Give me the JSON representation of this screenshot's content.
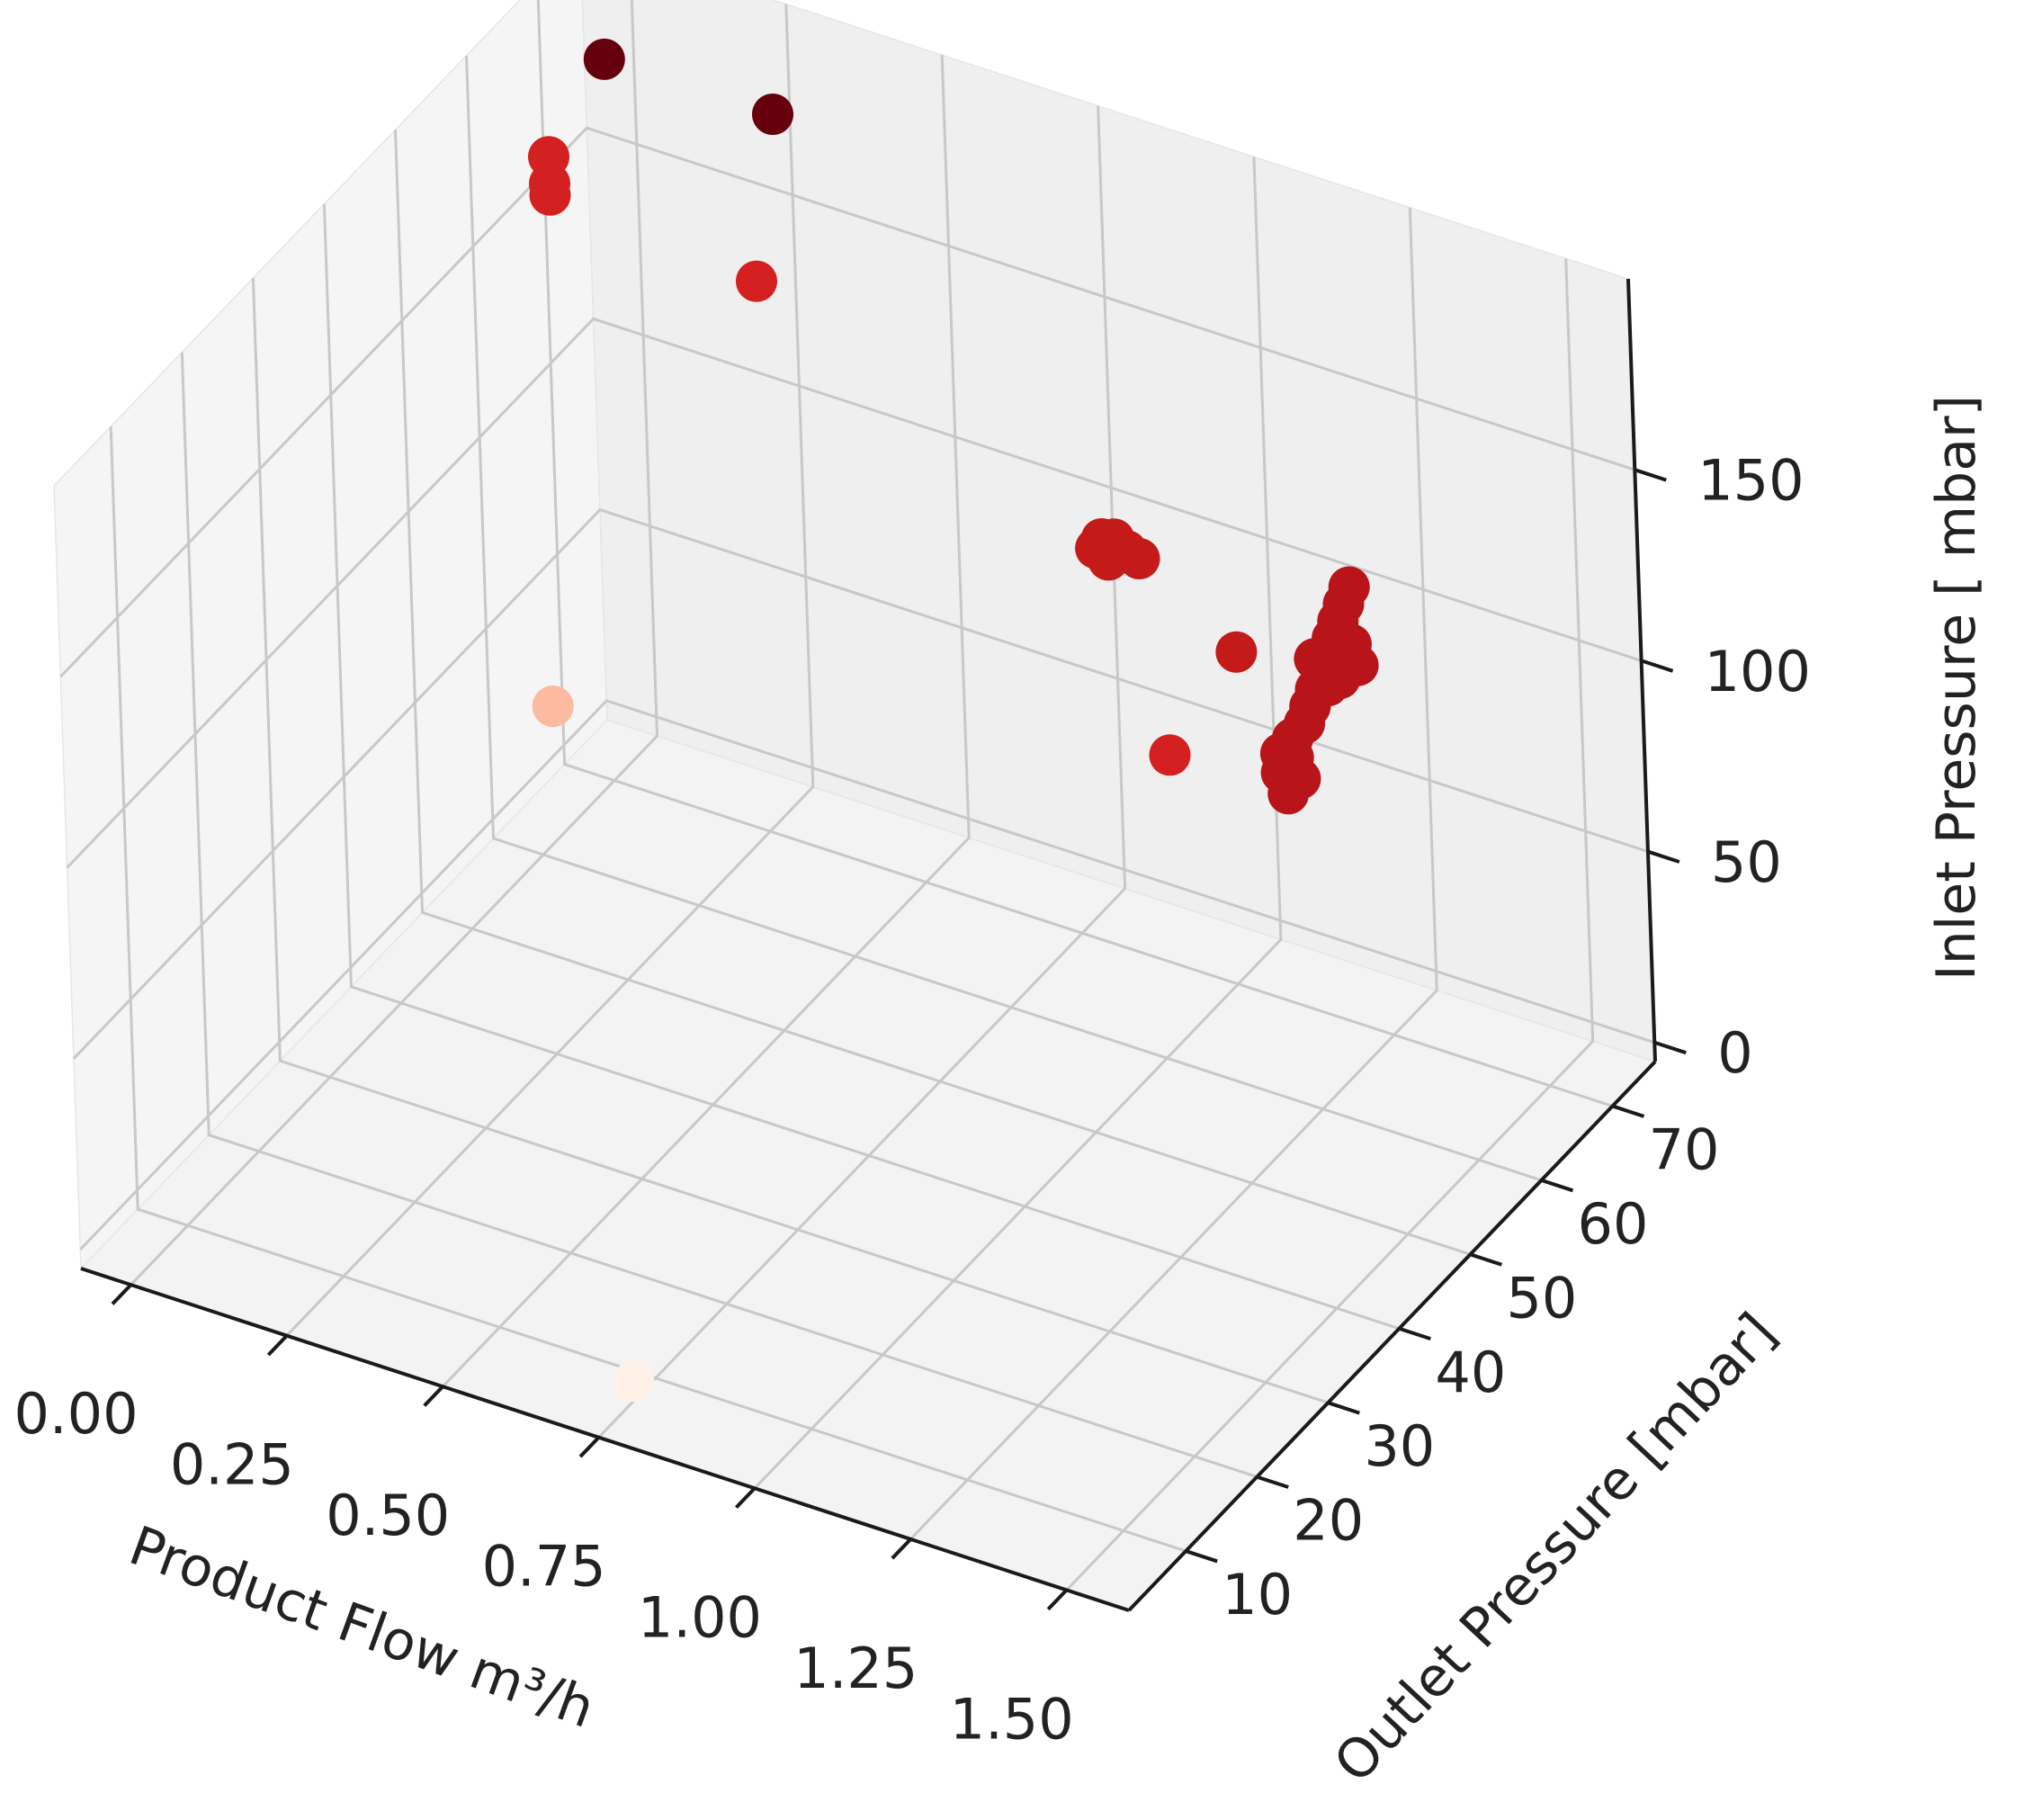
{
  "chart_data": {
    "type": "scatter",
    "dimensions": "3d",
    "xlabel": "Product Flow m³/h",
    "ylabel": "Outlet Pressure [mbar]",
    "zlabel": "Inlet Pressure [ mbar]",
    "x_ticks": [
      "0.00",
      "0.25",
      "0.50",
      "0.75",
      "1.00",
      "1.25",
      "1.50"
    ],
    "y_ticks": [
      "10",
      "20",
      "30",
      "40",
      "50",
      "60",
      "70"
    ],
    "z_ticks": [
      "0",
      "50",
      "100",
      "150"
    ],
    "xlim": [
      -0.08,
      1.6
    ],
    "ylim": [
      2,
      76
    ],
    "zlim": [
      -5,
      200
    ],
    "grid": true,
    "colormap": "Reds",
    "colors": {
      "light": "#fcbba1",
      "faint": "#fff0e8",
      "mid": "#d7301f",
      "strong": "#b81419",
      "dark": "#67000d"
    },
    "points": [
      {
        "x": 0.0,
        "y": 62,
        "z": 30,
        "color": "#fcbba1"
      },
      {
        "x": 0.75,
        "y": 7,
        "z": 0,
        "color": "#fff0e8"
      },
      {
        "x": 0.0,
        "y": 72,
        "z": 180,
        "color": "#67000d"
      },
      {
        "x": 0.27,
        "y": 72,
        "z": 180,
        "color": "#67000d"
      },
      {
        "x": 0.0,
        "y": 64,
        "z": 170,
        "color": "#d42020"
      },
      {
        "x": 0.0,
        "y": 64,
        "z": 163,
        "color": "#d42020"
      },
      {
        "x": 0.0,
        "y": 64,
        "z": 160,
        "color": "#d42020"
      },
      {
        "x": 0.33,
        "y": 64,
        "z": 155,
        "color": "#d42020"
      },
      {
        "x": 1.08,
        "y": 46,
        "z": 160,
        "color": "#c41a1a"
      },
      {
        "x": 1.09,
        "y": 46,
        "z": 163,
        "color": "#c41a1a"
      },
      {
        "x": 1.11,
        "y": 46,
        "z": 164,
        "color": "#c41a1a"
      },
      {
        "x": 1.1,
        "y": 46,
        "z": 158,
        "color": "#c41a1a"
      },
      {
        "x": 1.13,
        "y": 46,
        "z": 162,
        "color": "#c41a1a"
      },
      {
        "x": 1.15,
        "y": 46,
        "z": 161,
        "color": "#c41a1a"
      },
      {
        "x": 1.35,
        "y": 42,
        "z": 155,
        "color": "#c41a1a"
      },
      {
        "x": 1.32,
        "y": 35,
        "z": 140,
        "color": "#d42020"
      },
      {
        "x": 1.5,
        "y": 35,
        "z": 150,
        "color": "#b81419"
      },
      {
        "x": 1.51,
        "y": 35,
        "z": 140,
        "color": "#b81419"
      },
      {
        "x": 1.52,
        "y": 35,
        "z": 155,
        "color": "#b81419"
      },
      {
        "x": 1.53,
        "y": 35,
        "z": 145,
        "color": "#b81419"
      },
      {
        "x": 1.54,
        "y": 35,
        "z": 160,
        "color": "#b81419"
      },
      {
        "x": 1.55,
        "y": 35,
        "z": 165,
        "color": "#b81419"
      },
      {
        "x": 1.56,
        "y": 35,
        "z": 170,
        "color": "#b81419"
      },
      {
        "x": 1.57,
        "y": 35,
        "z": 175,
        "color": "#b81419"
      },
      {
        "x": 1.58,
        "y": 35,
        "z": 180,
        "color": "#b81419"
      },
      {
        "x": 1.59,
        "y": 35,
        "z": 185,
        "color": "#b81419"
      },
      {
        "x": 1.56,
        "y": 35,
        "z": 178,
        "color": "#b81419"
      },
      {
        "x": 1.58,
        "y": 35,
        "z": 172,
        "color": "#b81419"
      },
      {
        "x": 1.6,
        "y": 35,
        "z": 190,
        "color": "#b81419"
      },
      {
        "x": 1.61,
        "y": 35,
        "z": 195,
        "color": "#b81419"
      },
      {
        "x": 1.62,
        "y": 35,
        "z": 200,
        "color": "#b81419"
      },
      {
        "x": 1.62,
        "y": 35,
        "z": 185,
        "color": "#b81419"
      },
      {
        "x": 1.63,
        "y": 35,
        "z": 180,
        "color": "#b81419"
      },
      {
        "x": 1.6,
        "y": 35,
        "z": 175,
        "color": "#b81419"
      },
      {
        "x": 1.55,
        "y": 35,
        "z": 165,
        "color": "#b81419"
      },
      {
        "x": 1.52,
        "y": 35,
        "z": 150,
        "color": "#b81419"
      },
      {
        "x": 1.5,
        "y": 35,
        "z": 145,
        "color": "#b81419"
      }
    ]
  }
}
